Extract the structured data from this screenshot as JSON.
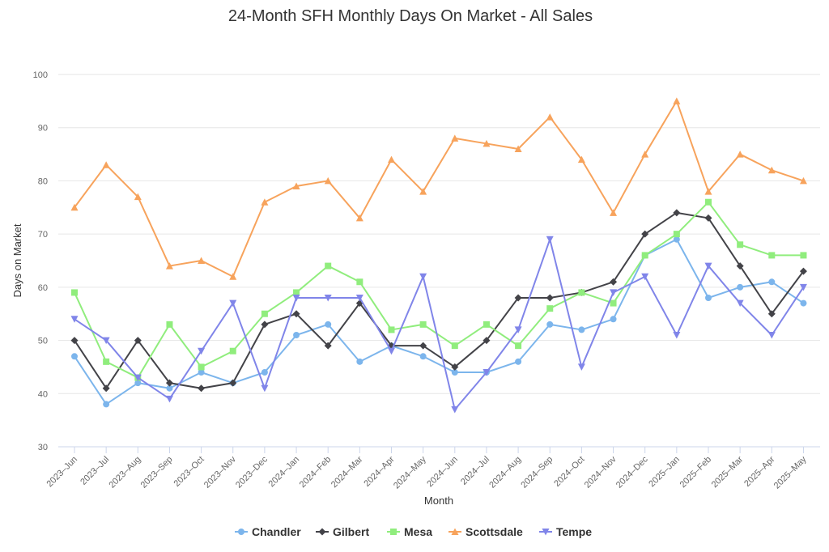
{
  "chart_data": {
    "type": "line",
    "title": "24-Month SFH Monthly Days On Market - All Sales",
    "xlabel": "Month",
    "ylabel": "Days on Market",
    "ylim": [
      30,
      100
    ],
    "yticks": [
      "30",
      "40",
      "50",
      "60",
      "70",
      "80",
      "90",
      "100"
    ],
    "grid": true,
    "legend_position": "bottom",
    "categories": [
      "2023–Jun",
      "2023–Jul",
      "2023–Aug",
      "2023–Sep",
      "2023–Oct",
      "2023–Nov",
      "2023–Dec",
      "2024–Jan",
      "2024–Feb",
      "2024–Mar",
      "2024–Apr",
      "2024–May",
      "2024–Jun",
      "2024–Jul",
      "2024–Aug",
      "2024–Sep",
      "2024–Oct",
      "2024–Nov",
      "2024–Dec",
      "2025–Jan",
      "2025–Feb",
      "2025–Mar",
      "2025–Apr",
      "2025–May"
    ],
    "series": [
      {
        "name": "Chandler",
        "color": "#7cb5ec",
        "marker": "circle",
        "values": [
          47,
          38,
          42,
          41,
          44,
          42,
          44,
          51,
          53,
          46,
          49,
          47,
          44,
          44,
          46,
          53,
          52,
          54,
          66,
          69,
          58,
          60,
          61,
          57
        ]
      },
      {
        "name": "Gilbert",
        "color": "#434348",
        "marker": "diamond",
        "values": [
          50,
          41,
          50,
          42,
          41,
          42,
          53,
          55,
          49,
          57,
          49,
          49,
          45,
          50,
          58,
          58,
          59,
          61,
          70,
          74,
          73,
          64,
          55,
          63
        ]
      },
      {
        "name": "Mesa",
        "color": "#90ed7d",
        "marker": "square",
        "values": [
          59,
          46,
          43,
          53,
          45,
          48,
          55,
          59,
          64,
          61,
          52,
          53,
          49,
          53,
          49,
          56,
          59,
          57,
          66,
          70,
          76,
          68,
          66,
          66
        ]
      },
      {
        "name": "Scottsdale",
        "color": "#f7a35c",
        "marker": "triangle",
        "values": [
          75,
          83,
          77,
          64,
          65,
          62,
          76,
          79,
          80,
          73,
          84,
          78,
          88,
          87,
          86,
          92,
          84,
          74,
          85,
          95,
          78,
          85,
          82,
          80
        ]
      },
      {
        "name": "Tempe",
        "color": "#8085e9",
        "marker": "triangle-down",
        "values": [
          54,
          50,
          43,
          39,
          48,
          57,
          41,
          58,
          58,
          58,
          48,
          62,
          37,
          44,
          52,
          69,
          45,
          59,
          62,
          51,
          64,
          57,
          51,
          60
        ]
      }
    ]
  }
}
